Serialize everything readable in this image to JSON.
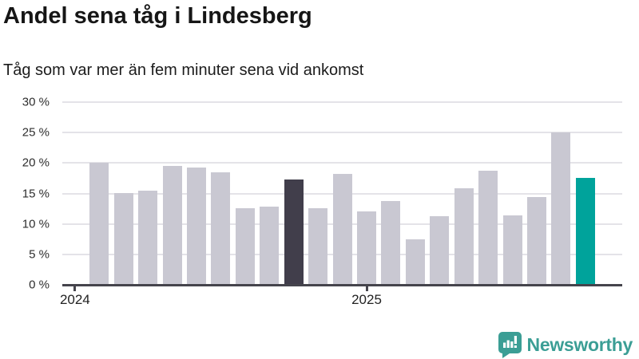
{
  "header": {
    "title": "Andel sena tåg i Lindesberg",
    "subtitle": "Tåg som var mer än fem minuter sena vid ankomst"
  },
  "chart_data": {
    "type": "bar",
    "title": "Andel sena tåg i Lindesberg",
    "subtitle": "Tåg som var mer än fem minuter sena vid ankomst",
    "unit": "%",
    "ylim": [
      0,
      30
    ],
    "grid": "horizontal gridlines every 5%",
    "legend": "none",
    "yticks": [
      {
        "value": 0,
        "label": "0 %"
      },
      {
        "value": 5,
        "label": "5 %"
      },
      {
        "value": 10,
        "label": "10 %"
      },
      {
        "value": 15,
        "label": "15 %"
      },
      {
        "value": 20,
        "label": "20 %"
      },
      {
        "value": 25,
        "label": "25 %"
      },
      {
        "value": 30,
        "label": "30 %"
      }
    ],
    "values": [
      20.0,
      15.1,
      15.4,
      19.5,
      19.3,
      18.5,
      12.6,
      12.8,
      17.3,
      12.6,
      18.2,
      12.0,
      13.8,
      7.4,
      11.2,
      15.9,
      18.8,
      11.4,
      14.4,
      25.1,
      17.6
    ],
    "highlights": {
      "dark_bar_index": 8,
      "teal_bar_index": 20
    },
    "colors": {
      "bar_default": "#c9c8d2",
      "bar_dark": "#413e4b",
      "bar_teal": "#00a39b",
      "gridline": "#e4e3e8",
      "axis": "#45444c"
    },
    "x_ticks": [
      {
        "label": "2024",
        "bar_index": -1
      },
      {
        "label": "2025",
        "bar_index": 11
      }
    ]
  },
  "footer": {
    "logo_label": "Newsworthy",
    "logo_color": "#3b9e95"
  }
}
